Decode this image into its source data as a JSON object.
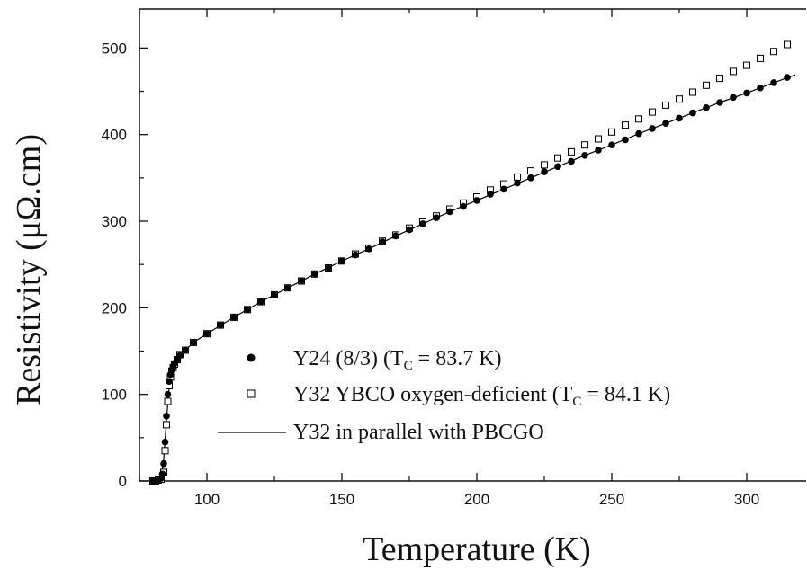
{
  "chart_data": {
    "type": "scatter",
    "xlabel": "Temperature (K)",
    "ylabel": "Resistivity (μΩ.cm)",
    "xlim": [
      75,
      322
    ],
    "ylim": [
      0,
      545
    ],
    "xticks": [
      100,
      150,
      200,
      250,
      300
    ],
    "yticks": [
      0,
      100,
      200,
      300,
      400,
      500
    ],
    "grid": false,
    "legend_position": "lower-right",
    "colors": {
      "axis": "#111111",
      "filled": "#000000",
      "open_fill": "#ffffff",
      "line": "#000000"
    },
    "series": [
      {
        "legend_main": "Y24 (8/3) (T",
        "legend_sub": "C",
        "legend_tail": " = 83.7 K)",
        "marker": "filled-circle",
        "x": [
          80,
          81,
          82,
          83,
          83.5,
          84,
          84.5,
          85,
          85.5,
          86,
          86.5,
          87,
          87.5,
          88,
          89,
          90,
          92,
          95,
          100,
          105,
          110,
          115,
          120,
          125,
          130,
          135,
          140,
          145,
          150,
          155,
          160,
          165,
          170,
          175,
          180,
          185,
          190,
          195,
          200,
          205,
          210,
          215,
          220,
          225,
          230,
          235,
          240,
          245,
          250,
          255,
          260,
          265,
          270,
          275,
          280,
          285,
          290,
          295,
          300,
          305,
          310,
          315
        ],
        "y": [
          0,
          0,
          1,
          3,
          8,
          20,
          45,
          75,
          100,
          115,
          123,
          128,
          132,
          136,
          140,
          145,
          151,
          160,
          170,
          180,
          189,
          198,
          207,
          215,
          223,
          231,
          239,
          246,
          254,
          261,
          268,
          276,
          283,
          290,
          297,
          304,
          311,
          317,
          324,
          331,
          337,
          344,
          350,
          357,
          363,
          369,
          376,
          382,
          388,
          394,
          401,
          407,
          413,
          419,
          425,
          431,
          437,
          443,
          448,
          454,
          460,
          466
        ]
      },
      {
        "legend_main": "Y32 YBCO oxygen-deficient (T",
        "legend_sub": "C",
        "legend_tail": " = 84.1 K)",
        "marker": "open-square",
        "x": [
          80,
          81,
          82,
          83,
          84,
          84.5,
          85,
          85.5,
          86,
          86.5,
          87,
          87.5,
          88,
          89,
          90,
          92,
          95,
          100,
          105,
          110,
          115,
          120,
          125,
          130,
          135,
          140,
          145,
          150,
          155,
          160,
          165,
          170,
          175,
          180,
          185,
          190,
          195,
          200,
          205,
          210,
          215,
          220,
          225,
          230,
          235,
          240,
          245,
          250,
          255,
          260,
          265,
          270,
          275,
          280,
          285,
          290,
          295,
          300,
          305,
          310,
          315
        ],
        "y": [
          0,
          0,
          1,
          2,
          10,
          35,
          65,
          92,
          110,
          120,
          127,
          131,
          135,
          140,
          146,
          151,
          160,
          170,
          180,
          189,
          198,
          207,
          215,
          223,
          231,
          239,
          246,
          254,
          262,
          269,
          277,
          284,
          292,
          299,
          306,
          314,
          321,
          328,
          336,
          343,
          351,
          358,
          365,
          373,
          380,
          388,
          395,
          403,
          411,
          418,
          426,
          434,
          441,
          449,
          457,
          465,
          473,
          480,
          488,
          496,
          504
        ]
      },
      {
        "legend_main": "Y32 in parallel with PBCGO",
        "marker": "line",
        "x": [
          80,
          82,
          83,
          84,
          85,
          86,
          87,
          88,
          90,
          92,
          95,
          100,
          110,
          120,
          130,
          140,
          150,
          160,
          170,
          180,
          190,
          200,
          210,
          220,
          230,
          240,
          250,
          260,
          270,
          280,
          290,
          300,
          310,
          318
        ],
        "y": [
          0,
          1,
          5,
          25,
          70,
          108,
          125,
          134,
          145,
          151,
          160,
          170,
          189,
          207,
          223,
          239,
          254,
          268,
          283,
          297,
          311,
          324,
          337,
          350,
          363,
          376,
          388,
          401,
          413,
          425,
          437,
          448,
          460,
          469
        ]
      }
    ]
  }
}
